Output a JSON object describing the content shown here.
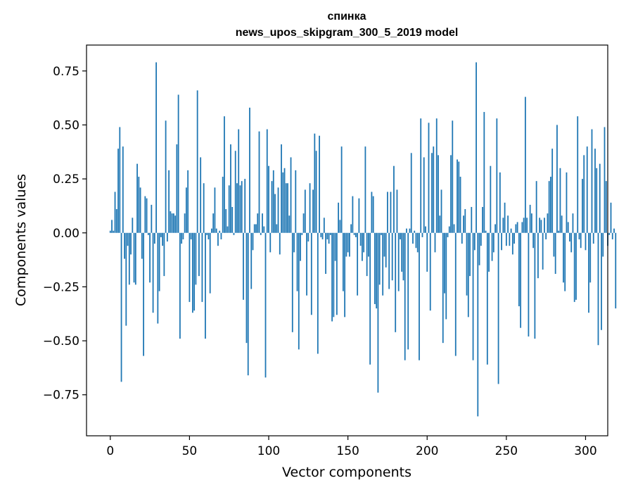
{
  "chart_data": {
    "type": "bar",
    "title": "спинка",
    "subtitle": "news_upos_skipgram_300_5_2019 model",
    "xlabel": "Vector components",
    "ylabel": "Components values",
    "xlim": [
      -15,
      314
    ],
    "ylim": [
      -0.94,
      0.87
    ],
    "xticks": [
      0,
      50,
      100,
      150,
      200,
      250,
      300
    ],
    "yticks": [
      -0.75,
      -0.5,
      -0.25,
      0.0,
      0.25,
      0.5,
      0.75
    ],
    "xtick_labels": [
      "0",
      "50",
      "100",
      "150",
      "200",
      "250",
      "300"
    ],
    "ytick_labels": [
      "−0.75",
      "−0.50",
      "−0.25",
      "0.00",
      "0.25",
      "0.50",
      "0.75"
    ],
    "bar_color": "#1f77b4",
    "grid": false,
    "values": [
      0.01,
      0.06,
      0.01,
      0.19,
      0.11,
      0.39,
      0.49,
      -0.69,
      0.4,
      -0.12,
      -0.43,
      -0.06,
      -0.24,
      -0.1,
      0.07,
      -0.23,
      -0.24,
      0.32,
      0.26,
      0.21,
      -0.12,
      -0.57,
      0.17,
      0.16,
      -0.01,
      -0.23,
      0.13,
      -0.37,
      -0.05,
      0.79,
      -0.42,
      -0.27,
      -0.02,
      -0.06,
      -0.2,
      0.52,
      -0.04,
      0.29,
      0.1,
      0.09,
      0.09,
      0.08,
      0.41,
      0.64,
      -0.49,
      -0.05,
      -0.03,
      0.09,
      0.21,
      0.29,
      -0.32,
      -0.03,
      -0.37,
      -0.36,
      -0.24,
      0.66,
      -0.2,
      0.35,
      -0.32,
      0.23,
      -0.49,
      -0.01,
      -0.03,
      -0.28,
      0.02,
      0.09,
      0.21,
      0.02,
      -0.06,
      0.01,
      -0.03,
      0.26,
      0.54,
      0.11,
      0.03,
      0.22,
      0.41,
      0.12,
      -0.01,
      0.38,
      0.23,
      0.48,
      0.22,
      0.24,
      -0.31,
      0.25,
      -0.51,
      -0.66,
      0.58,
      -0.26,
      -0.08,
      0.04,
      0.04,
      0.09,
      0.47,
      -0.01,
      0.09,
      0.03,
      -0.67,
      0.48,
      0.31,
      -0.09,
      0.24,
      0.29,
      0.18,
      0.04,
      0.21,
      -0.1,
      0.41,
      0.28,
      0.3,
      0.23,
      0.23,
      0.08,
      0.35,
      -0.46,
      -0.09,
      0.29,
      -0.27,
      -0.54,
      -0.13,
      -0.01,
      0.09,
      0.2,
      -0.29,
      -0.04,
      0.23,
      -0.38,
      0.2,
      0.46,
      0.38,
      -0.56,
      0.45,
      -0.02,
      -0.03,
      0.07,
      -0.19,
      -0.03,
      -0.05,
      -0.01,
      -0.41,
      -0.39,
      -0.13,
      -0.38,
      0.14,
      0.06,
      0.4,
      -0.27,
      -0.39,
      -0.11,
      -0.09,
      -0.11,
      0.04,
      0.17,
      -0.01,
      -0.02,
      -0.29,
      0.16,
      -0.06,
      -0.13,
      -0.09,
      0.4,
      -0.2,
      -0.11,
      -0.61,
      0.19,
      0.17,
      -0.33,
      -0.35,
      -0.74,
      -0.24,
      -0.01,
      -0.29,
      -0.11,
      -0.16,
      0.19,
      -0.26,
      0.19,
      -0.22,
      0.31,
      -0.46,
      0.2,
      -0.27,
      -0.03,
      -0.18,
      -0.22,
      -0.59,
      0.02,
      -0.54,
      0.02,
      0.37,
      -0.05,
      0.01,
      -0.07,
      -0.09,
      -0.59,
      0.53,
      -0.02,
      0.35,
      0.03,
      -0.18,
      0.51,
      -0.36,
      0.37,
      0.4,
      -0.09,
      0.53,
      0.36,
      0.08,
      0.2,
      -0.51,
      -0.28,
      -0.4,
      -0.02,
      0.03,
      0.36,
      0.52,
      0.04,
      -0.57,
      0.34,
      0.33,
      0.26,
      -0.05,
      0.08,
      0.11,
      -0.29,
      -0.39,
      -0.2,
      0.12,
      -0.59,
      -0.08,
      0.79,
      -0.85,
      -0.15,
      -0.06,
      0.12,
      0.56,
      0.01,
      -0.61,
      -0.18,
      0.31,
      -0.13,
      -0.09,
      0.04,
      0.53,
      -0.7,
      0.28,
      -0.08,
      0.07,
      0.14,
      -0.06,
      0.08,
      -0.06,
      0.02,
      -0.1,
      -0.05,
      0.04,
      0.05,
      -0.34,
      -0.44,
      0.05,
      0.07,
      0.63,
      0.07,
      -0.48,
      0.13,
      0.09,
      -0.07,
      -0.49,
      0.24,
      -0.21,
      0.07,
      0.06,
      -0.17,
      0.07,
      -0.03,
      0.09,
      0.24,
      0.26,
      0.39,
      -0.11,
      -0.19,
      0.5,
      0.01,
      0.3,
      0.08,
      -0.23,
      -0.27,
      0.28,
      0.05,
      -0.04,
      -0.09,
      0.09,
      -0.32,
      -0.31,
      0.54,
      -0.03,
      -0.07,
      0.25,
      0.36,
      -0.08,
      0.4,
      -0.37,
      -0.23,
      0.48,
      -0.05,
      0.39,
      0.3,
      -0.52,
      0.32,
      -0.45,
      -0.11,
      0.49,
      0.24,
      -0.06,
      -0.01,
      0.14,
      -0.03,
      0.02,
      -0.35
    ]
  }
}
